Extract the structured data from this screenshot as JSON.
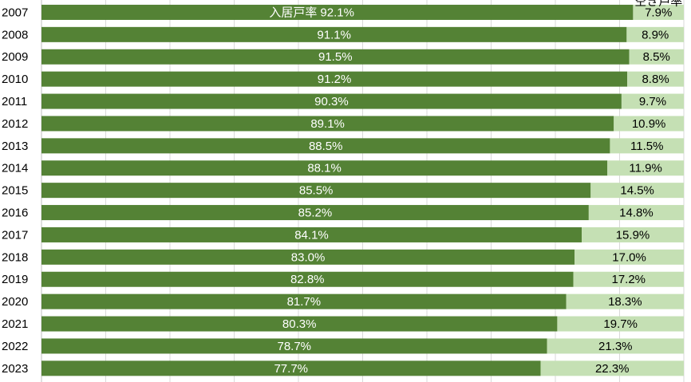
{
  "chart_data": {
    "type": "stacked_bar_horizontal",
    "categories": [
      "2007",
      "2008",
      "2009",
      "2010",
      "2011",
      "2012",
      "2013",
      "2014",
      "2015",
      "2016",
      "2017",
      "2018",
      "2019",
      "2020",
      "2021",
      "2022",
      "2023"
    ],
    "series": [
      {
        "name": "入居戸率",
        "color": "#548235",
        "label_color": "#ffffff",
        "values": [
          92.1,
          91.1,
          91.5,
          91.2,
          90.3,
          89.1,
          88.5,
          88.1,
          85.5,
          85.2,
          84.1,
          83.0,
          82.8,
          81.7,
          80.3,
          78.7,
          77.7
        ],
        "value_labels": [
          "92.1%",
          "91.1%",
          "91.5%",
          "91.2%",
          "90.3%",
          "89.1%",
          "88.5%",
          "88.1%",
          "85.5%",
          "85.2%",
          "84.1%",
          "83.0%",
          "82.8%",
          "81.7%",
          "80.3%",
          "78.7%",
          "77.7%"
        ]
      },
      {
        "name": "空き戸率",
        "color": "#c5e0b4",
        "label_color": "#000000",
        "values": [
          7.9,
          8.9,
          8.5,
          8.8,
          9.7,
          10.9,
          11.5,
          11.9,
          14.5,
          14.8,
          15.9,
          17.0,
          17.2,
          18.3,
          19.7,
          21.3,
          22.3
        ],
        "value_labels": [
          "7.9%",
          "8.9%",
          "8.5%",
          "8.8%",
          "9.7%",
          "10.9%",
          "11.5%",
          "11.9%",
          "14.5%",
          "14.8%",
          "15.9%",
          "17.0%",
          "17.2%",
          "18.3%",
          "19.7%",
          "21.3%",
          "22.3%"
        ]
      }
    ],
    "xlim": [
      0,
      100
    ],
    "xticks": [
      0,
      10,
      20,
      30,
      40,
      50,
      60,
      70,
      80,
      90,
      100
    ],
    "grid": true
  }
}
